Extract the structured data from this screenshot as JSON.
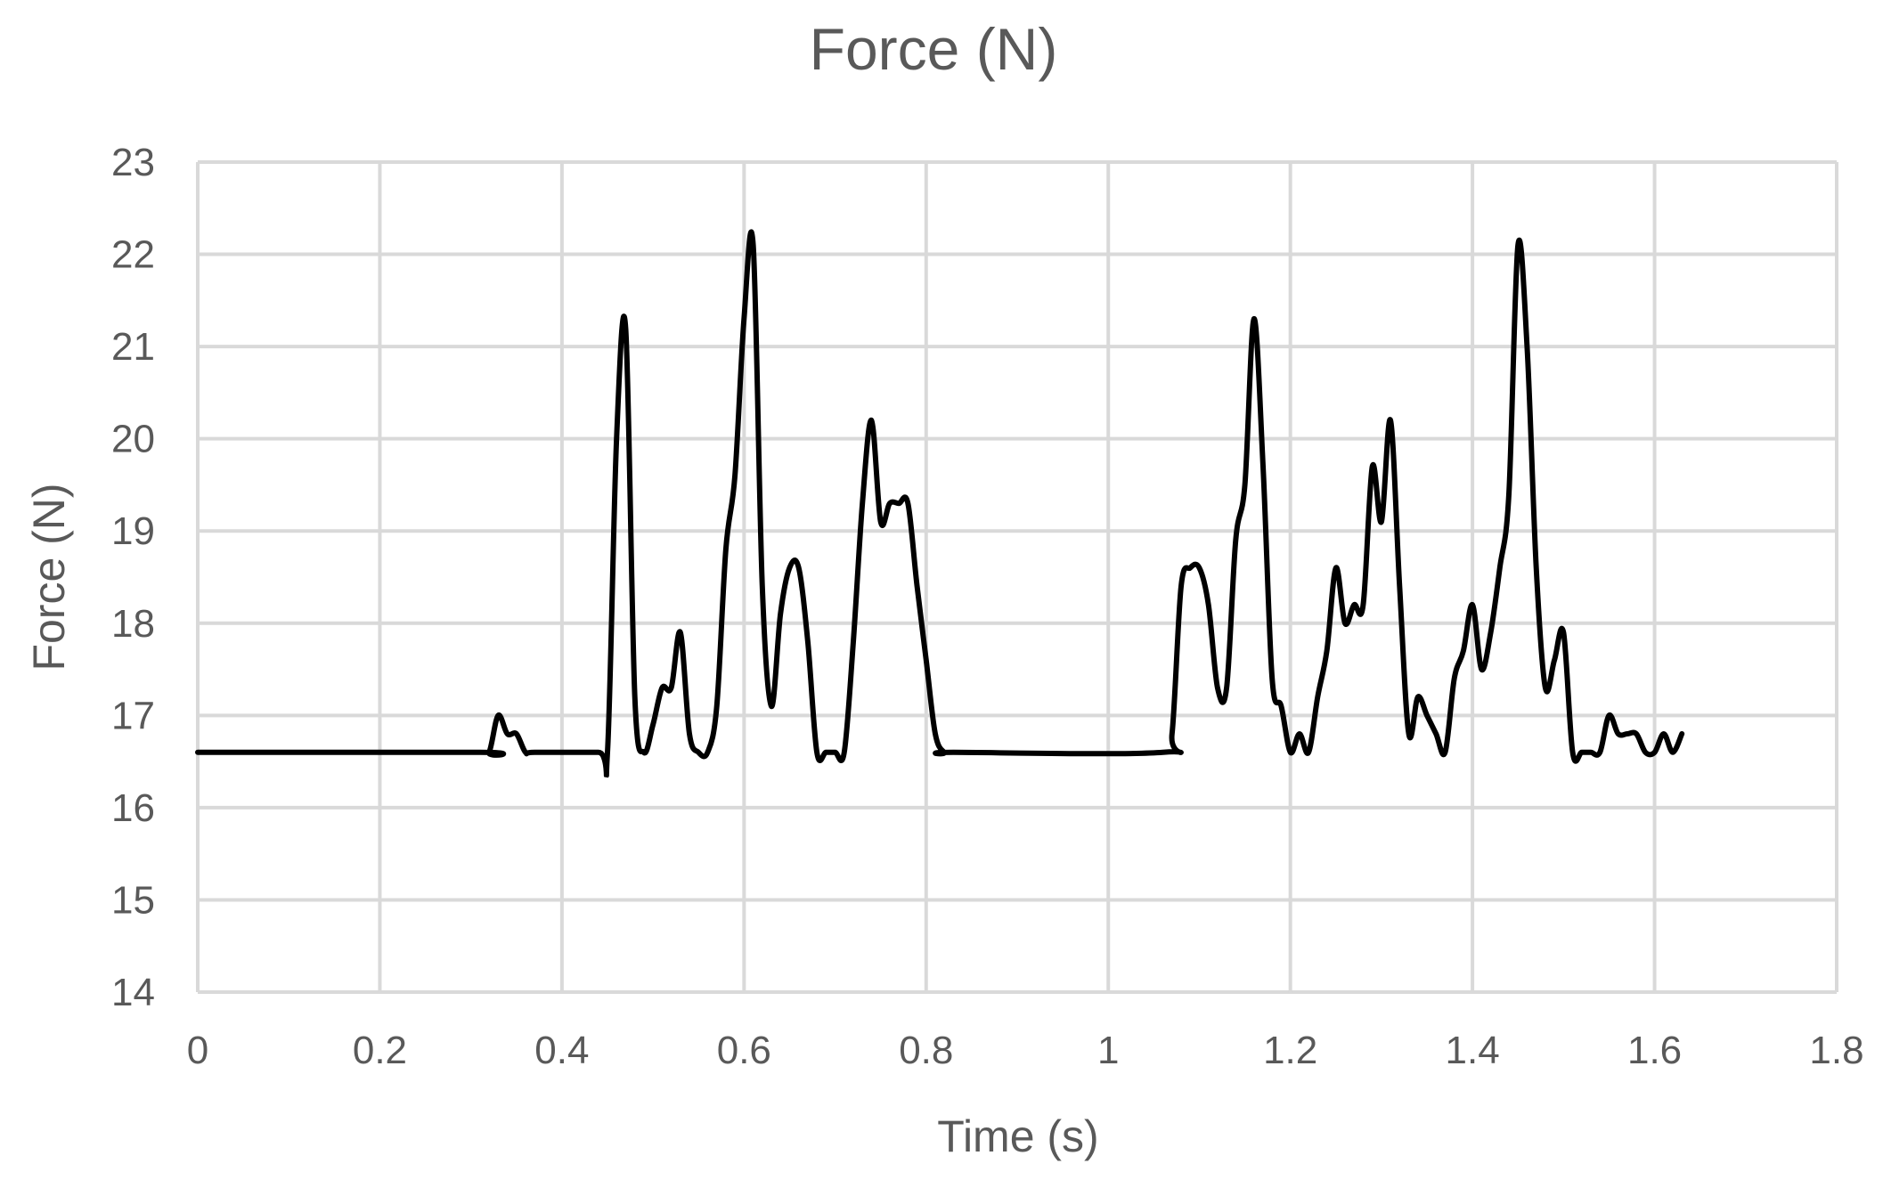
{
  "chart_data": {
    "type": "line",
    "title": "Force (N)",
    "xlabel": "Time (s)",
    "ylabel": "Force (N)",
    "xlim": [
      0,
      1.8
    ],
    "ylim": [
      14,
      23
    ],
    "xticks": [
      0,
      0.2,
      0.4,
      0.6,
      0.8,
      1,
      1.2,
      1.4,
      1.6,
      1.8
    ],
    "xtick_labels": [
      "0",
      "0.2",
      "0.4",
      "0.6",
      "0.8",
      "1",
      "1.2",
      "1.4",
      "1.6",
      "1.8"
    ],
    "yticks": [
      14,
      15,
      16,
      17,
      18,
      19,
      20,
      21,
      22,
      23
    ],
    "ytick_labels": [
      "14",
      "15",
      "16",
      "17",
      "18",
      "19",
      "20",
      "21",
      "22",
      "23"
    ],
    "grid": true,
    "legend": "none",
    "series": [
      {
        "color": "#000000",
        "x": [
          0,
          0.31,
          0.32,
          0.33,
          0.34,
          0.35,
          0.36,
          0.37,
          0.44,
          0.45,
          0.46,
          0.47,
          0.48,
          0.49,
          0.5,
          0.51,
          0.52,
          0.53,
          0.54,
          0.55,
          0.56,
          0.57,
          0.58,
          0.59,
          0.6,
          0.61,
          0.62,
          0.63,
          0.64,
          0.65,
          0.66,
          0.67,
          0.68,
          0.69,
          0.7,
          0.71,
          0.72,
          0.73,
          0.74,
          0.75,
          0.76,
          0.77,
          0.78,
          0.79,
          0.8,
          0.81,
          0.82,
          0.83,
          1.06,
          1.07,
          1.08,
          1.09,
          1.1,
          1.11,
          1.12,
          1.13,
          1.14,
          1.15,
          1.16,
          1.17,
          1.18,
          1.19,
          1.2,
          1.21,
          1.22,
          1.23,
          1.24,
          1.25,
          1.26,
          1.27,
          1.28,
          1.29,
          1.3,
          1.31,
          1.32,
          1.33,
          1.34,
          1.35,
          1.36,
          1.37,
          1.38,
          1.39,
          1.4,
          1.41,
          1.42,
          1.43,
          1.44,
          1.45,
          1.46,
          1.47,
          1.48,
          1.49,
          1.5,
          1.51,
          1.52,
          1.53,
          1.54,
          1.55,
          1.56,
          1.57,
          1.58,
          1.59,
          1.6,
          1.61,
          1.62,
          1.63
        ],
        "y": [
          16.6,
          16.6,
          16.6,
          17.0,
          16.8,
          16.8,
          16.6,
          16.6,
          16.6,
          16.6,
          20.0,
          21.2,
          17.2,
          16.6,
          16.9,
          17.3,
          17.3,
          17.9,
          16.8,
          16.6,
          16.6,
          17.1,
          18.8,
          19.6,
          21.3,
          22.1,
          18.4,
          17.1,
          18.1,
          18.6,
          18.6,
          17.8,
          16.6,
          16.6,
          16.6,
          16.6,
          17.8,
          19.3,
          20.2,
          19.1,
          19.3,
          19.3,
          19.3,
          18.4,
          17.6,
          16.8,
          16.6,
          16.6,
          16.6,
          16.8,
          18.4,
          18.6,
          18.6,
          18.2,
          17.3,
          17.3,
          18.9,
          19.5,
          21.3,
          19.7,
          17.4,
          17.1,
          16.6,
          16.8,
          16.6,
          17.2,
          17.7,
          18.6,
          18.0,
          18.2,
          18.2,
          19.7,
          19.1,
          20.2,
          18.4,
          16.8,
          17.2,
          17.0,
          16.8,
          16.6,
          17.4,
          17.7,
          18.2,
          17.5,
          17.9,
          18.6,
          19.4,
          22.1,
          21.0,
          18.6,
          17.3,
          17.6,
          17.9,
          16.6,
          16.6,
          16.6,
          16.6,
          17.0,
          16.8,
          16.8,
          16.8,
          16.6,
          16.6,
          16.8,
          16.6,
          16.8
        ]
      }
    ]
  }
}
